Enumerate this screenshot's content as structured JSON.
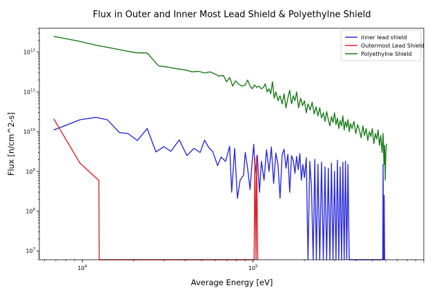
{
  "chart_data": {
    "type": "line",
    "title": "Flux in Outer and Inner Most Lead Shield & Polyethylne Shield",
    "xlabel": "Average Energy [eV]",
    "ylabel": "Flux [n/cm^2-s]",
    "xscale": "log",
    "yscale": "log",
    "xlim": [
      5600,
      1000000
    ],
    "ylim": [
      6000000,
      4000000000000
    ],
    "xticks": [
      {
        "value": 10000,
        "base": "10",
        "exp": "4"
      },
      {
        "value": 100000,
        "base": "10",
        "exp": "5"
      }
    ],
    "yticks": [
      {
        "value": 10000000,
        "base": "10",
        "exp": "7"
      },
      {
        "value": 100000000,
        "base": "10",
        "exp": "8"
      },
      {
        "value": 1000000000,
        "base": "10",
        "exp": "9"
      },
      {
        "value": 10000000000,
        "base": "10",
        "exp": "10"
      },
      {
        "value": 100000000000,
        "base": "10",
        "exp": "11"
      },
      {
        "value": 1000000000000,
        "base": "10",
        "exp": "12"
      }
    ],
    "grid": false,
    "legend_position": "top-right",
    "series": [
      {
        "name": "Inner lead shield",
        "color": "#2b2bdc",
        "points": [
          [
            6800,
            11000000000
          ],
          [
            9700,
            20000000000
          ],
          [
            12000,
            23000000000
          ],
          [
            14000,
            20000000000
          ],
          [
            16500,
            9500000000
          ],
          [
            18500,
            9000000000
          ],
          [
            21000,
            6000000000
          ],
          [
            24000,
            12000000000
          ],
          [
            27000,
            3100000000
          ],
          [
            30000,
            4200000000
          ],
          [
            33000,
            3200000000
          ],
          [
            37000,
            6200000000
          ],
          [
            41000,
            2500000000
          ],
          [
            45000,
            3800000000
          ],
          [
            49000,
            3000000000
          ],
          [
            52000,
            6100000000
          ],
          [
            55000,
            4000000000
          ],
          [
            58000,
            3200000000
          ],
          [
            62000,
            1400000000
          ],
          [
            65000,
            2300000000
          ],
          [
            69000,
            1800000000
          ],
          [
            73000,
            4300000000
          ],
          [
            75000,
            300000000
          ],
          [
            78000,
            3800000000
          ],
          [
            81000,
            210000000
          ],
          [
            84000,
            600000000
          ],
          [
            88000,
            800000000
          ],
          [
            90000,
            3000000000
          ],
          [
            93000,
            1200000000
          ],
          [
            96000,
            350000000
          ],
          [
            99000,
            2000000000
          ],
          [
            101000,
            4800000000
          ],
          [
            103000,
            900000000
          ],
          [
            106000,
            2600000000
          ],
          [
            109000,
            300000000
          ],
          [
            112000,
            1800000000
          ],
          [
            116000,
            600000000
          ],
          [
            120000,
            3500000000
          ],
          [
            124000,
            1000000000
          ],
          [
            128000,
            4100000000
          ],
          [
            132000,
            500000000
          ],
          [
            136000,
            2900000000
          ],
          [
            140000,
            1500000000
          ],
          [
            144000,
            210000000
          ],
          [
            148000,
            2600000000
          ],
          [
            152000,
            3600000000
          ],
          [
            156000,
            1200000000
          ],
          [
            160000,
            2700000000
          ],
          [
            164000,
            300000000
          ],
          [
            168000,
            2500000000
          ],
          [
            172000,
            1900000000
          ],
          [
            176000,
            900000000
          ],
          [
            180000,
            2400000000
          ],
          [
            184000,
            1100000000
          ],
          [
            188000,
            2800000000
          ],
          [
            192000,
            600000000
          ],
          [
            196000,
            1500000000
          ],
          [
            200000,
            700000000
          ],
          [
            205000,
            2200000000
          ],
          [
            210000,
            6000000
          ],
          [
            215000,
            1800000000
          ],
          [
            220000,
            400000000
          ],
          [
            225000,
            6000000
          ],
          [
            230000,
            2000000000
          ],
          [
            235000,
            6000000
          ],
          [
            240000,
            1500000000
          ],
          [
            246000,
            6000000
          ],
          [
            252000,
            1700000000
          ],
          [
            258000,
            6000000
          ],
          [
            264000,
            1300000000
          ],
          [
            270000,
            6000000
          ],
          [
            276000,
            1200000000
          ],
          [
            282000,
            6000000
          ],
          [
            288000,
            1600000000
          ],
          [
            294000,
            6000000
          ],
          [
            300000,
            1000000000
          ],
          [
            306000,
            6000000
          ],
          [
            312000,
            1900000000
          ],
          [
            318000,
            6000000
          ],
          [
            324000,
            1300000000
          ],
          [
            330000,
            6000000
          ],
          [
            336000,
            1700000000
          ],
          [
            342000,
            6000000
          ],
          [
            348000,
            1800000000
          ],
          [
            354000,
            6000000
          ],
          [
            360000,
            1500000000
          ],
          [
            366000,
            6000000
          ],
          [
            575000,
            6000000
          ],
          [
            578000,
            1500000000
          ],
          [
            582000,
            6000000
          ],
          [
            586000,
            250000000
          ],
          [
            590000,
            6000000
          ]
        ]
      },
      {
        "name": "Outermost Lead Shield",
        "color": "#e0202a",
        "points": [
          [
            6800,
            21000000000
          ],
          [
            9700,
            1600000000
          ],
          [
            12500,
            590000000
          ],
          [
            12550,
            6000000
          ],
          [
            101500,
            6000000
          ],
          [
            102500,
            2200000000
          ],
          [
            104000,
            6000000
          ],
          [
            105000,
            2400000000
          ],
          [
            106500,
            6000000
          ]
        ]
      },
      {
        "name": "Polyethylne Shield",
        "color": "#197a19",
        "points": [
          [
            6800,
            2500000000000
          ],
          [
            9500,
            1900000000000
          ],
          [
            12000,
            1500000000000
          ],
          [
            15000,
            1250000000000
          ],
          [
            17500,
            1100000000000
          ],
          [
            20500,
            970000000000
          ],
          [
            24000,
            950000000000
          ],
          [
            28000,
            450000000000
          ],
          [
            32000,
            420000000000
          ],
          [
            36000,
            380000000000
          ],
          [
            40000,
            360000000000
          ],
          [
            44000,
            320000000000
          ],
          [
            48000,
            330000000000
          ],
          [
            52000,
            300000000000
          ],
          [
            56000,
            320000000000
          ],
          [
            60000,
            280000000000
          ],
          [
            63000,
            250000000000
          ],
          [
            67000,
            260000000000
          ],
          [
            70000,
            180000000000
          ],
          [
            73000,
            230000000000
          ],
          [
            76000,
            140000000000
          ],
          [
            79000,
            190000000000
          ],
          [
            82000,
            160000000000
          ],
          [
            86000,
            140000000000
          ],
          [
            90000,
            150000000000
          ],
          [
            93000,
            200000000000
          ],
          [
            96000,
            140000000000
          ],
          [
            99000,
            120000000000
          ],
          [
            102000,
            150000000000
          ],
          [
            105000,
            130000000000
          ],
          [
            108000,
            140000000000
          ],
          [
            112000,
            120000000000
          ],
          [
            115000,
            130000000000
          ],
          [
            118000,
            160000000000
          ],
          [
            121000,
            100000000000
          ],
          [
            124000,
            120000000000
          ],
          [
            127000,
            90000000000
          ],
          [
            130000,
            180000000000
          ],
          [
            133000,
            70000000000
          ],
          [
            136000,
            100000000000
          ],
          [
            140000,
            60000000000
          ],
          [
            144000,
            80000000000
          ],
          [
            148000,
            50000000000
          ],
          [
            152000,
            90000000000
          ],
          [
            156000,
            40000000000
          ],
          [
            160000,
            70000000000
          ],
          [
            164000,
            110000000000
          ],
          [
            168000,
            50000000000
          ],
          [
            172000,
            80000000000
          ],
          [
            176000,
            60000000000
          ],
          [
            180000,
            100000000000
          ],
          [
            185000,
            40000000000
          ],
          [
            190000,
            70000000000
          ],
          [
            195000,
            45000000000
          ],
          [
            200000,
            60000000000
          ],
          [
            205000,
            30000000000
          ],
          [
            210000,
            50000000000
          ],
          [
            216000,
            35000000000
          ],
          [
            222000,
            55000000000
          ],
          [
            228000,
            28000000000
          ],
          [
            234000,
            42000000000
          ],
          [
            240000,
            25000000000
          ],
          [
            246000,
            40000000000
          ],
          [
            252000,
            22000000000
          ],
          [
            258000,
            30000000000
          ],
          [
            264000,
            18000000000
          ],
          [
            270000,
            32000000000
          ],
          [
            276000,
            20000000000
          ],
          [
            282000,
            14000000000
          ],
          [
            288000,
            24000000000
          ],
          [
            294000,
            17000000000
          ],
          [
            300000,
            30000000000
          ],
          [
            306000,
            15000000000
          ],
          [
            312000,
            22000000000
          ],
          [
            318000,
            12000000000
          ],
          [
            324000,
            19000000000
          ],
          [
            330000,
            14000000000
          ],
          [
            336000,
            25000000000
          ],
          [
            342000,
            11000000000
          ],
          [
            348000,
            18000000000
          ],
          [
            354000,
            13000000000
          ],
          [
            360000,
            20000000000
          ],
          [
            366000,
            10000000000
          ],
          [
            372000,
            16000000000
          ],
          [
            380000,
            12000000000
          ],
          [
            390000,
            18000000000
          ],
          [
            400000,
            9000000000
          ],
          [
            410000,
            15000000000
          ],
          [
            420000,
            11000000000
          ],
          [
            430000,
            7000000000
          ],
          [
            440000,
            14000000000
          ],
          [
            450000,
            8000000000
          ],
          [
            460000,
            12000000000
          ],
          [
            470000,
            6000000000
          ],
          [
            480000,
            10000000000
          ],
          [
            490000,
            7500000000
          ],
          [
            500000,
            12000000000
          ],
          [
            510000,
            5000000000
          ],
          [
            520000,
            9000000000
          ],
          [
            530000,
            6500000000
          ],
          [
            540000,
            11000000000
          ],
          [
            550000,
            4500000000
          ],
          [
            560000,
            8000000000
          ],
          [
            570000,
            3000000000
          ],
          [
            578000,
            9000000000
          ],
          [
            585000,
            1500000000
          ],
          [
            590000,
            4500000000
          ],
          [
            595000,
            600000000
          ],
          [
            600000,
            3000000000
          ],
          [
            605000,
            5000000000
          ]
        ]
      }
    ]
  }
}
